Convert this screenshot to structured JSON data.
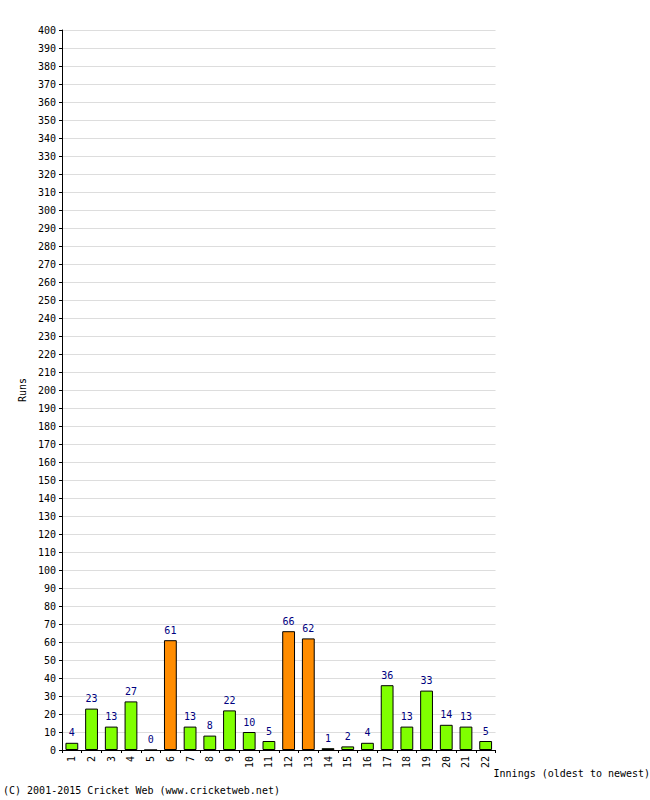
{
  "chart_data": {
    "type": "bar",
    "x_label": "Innings (oldest to newest)",
    "y_label": "Runs",
    "annotations": [
      "(C) 2001-2015 Cricket Web (www.cricketweb.net)"
    ],
    "categories": [
      "1",
      "2",
      "3",
      "4",
      "5",
      "6",
      "7",
      "8",
      "9",
      "10",
      "11",
      "12",
      "13",
      "14",
      "15",
      "16",
      "17",
      "18",
      "19",
      "20",
      "21",
      "22"
    ],
    "values": [
      4,
      23,
      13,
      27,
      0,
      61,
      13,
      8,
      22,
      10,
      5,
      66,
      62,
      1,
      2,
      4,
      36,
      13,
      33,
      14,
      13,
      5
    ],
    "colors": [
      "#80ff00",
      "#80ff00",
      "#80ff00",
      "#80ff00",
      "#80ff00",
      "#ff8c00",
      "#80ff00",
      "#80ff00",
      "#80ff00",
      "#80ff00",
      "#80ff00",
      "#ff8c00",
      "#ff8c00",
      "#80ff00",
      "#80ff00",
      "#80ff00",
      "#80ff00",
      "#80ff00",
      "#80ff00",
      "#80ff00",
      "#80ff00",
      "#80ff00"
    ],
    "ylim": [
      0,
      400
    ],
    "yticks": [
      0,
      10,
      20,
      30,
      40,
      50,
      60,
      70,
      80,
      90,
      100,
      110,
      120,
      130,
      140,
      150,
      160,
      170,
      180,
      190,
      200,
      210,
      220,
      230,
      240,
      250,
      260,
      270,
      280,
      290,
      300,
      310,
      320,
      330,
      340,
      350,
      360,
      370,
      380,
      390,
      400
    ],
    "grid": true,
    "data_labels": true
  }
}
